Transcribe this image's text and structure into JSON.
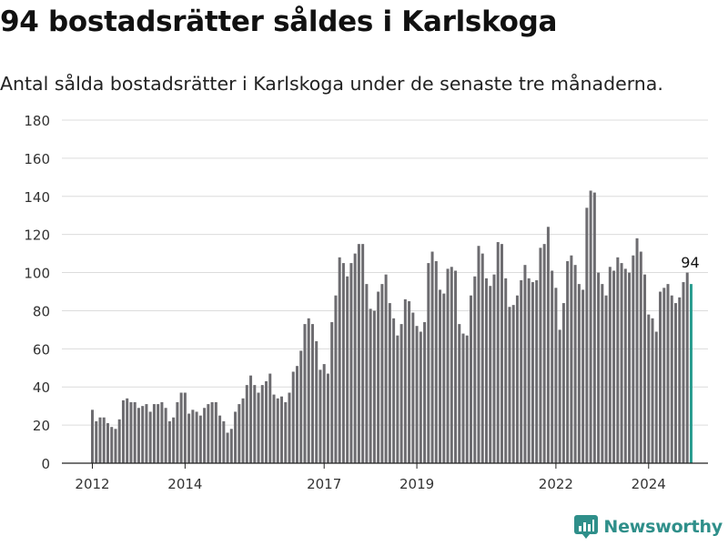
{
  "header": {
    "title": "94 bostadsrätter såldes i Karlskoga",
    "subtitle": "Antal sålda bostadsrätter i Karlskoga under de senaste tre månaderna."
  },
  "brand": {
    "name": "Newsworthy",
    "logo_icon": "newsworthy-logo-icon",
    "color": "#2f8f8a"
  },
  "chart_data": {
    "type": "bar",
    "grid": true,
    "ylim": [
      0,
      180
    ],
    "yticks": [
      "0",
      "20",
      "40",
      "60",
      "80",
      "100",
      "120",
      "140",
      "160",
      "180"
    ],
    "xticks": [
      {
        "label": "2012",
        "index": 0
      },
      {
        "label": "2014",
        "index": 24
      },
      {
        "label": "2017",
        "index": 60
      },
      {
        "label": "2019",
        "index": 84
      },
      {
        "label": "2022",
        "index": 120
      },
      {
        "label": "2024",
        "index": 144
      }
    ],
    "bar_color": "#6d6c70",
    "highlight_color": "#2a9d8f",
    "highlight_label": "94",
    "values": [
      28,
      22,
      24,
      24,
      21,
      19,
      18,
      23,
      33,
      34,
      32,
      32,
      29,
      30,
      31,
      27,
      31,
      31,
      32,
      29,
      22,
      24,
      32,
      37,
      37,
      26,
      28,
      27,
      25,
      29,
      31,
      32,
      32,
      25,
      22,
      16,
      18,
      27,
      31,
      34,
      41,
      46,
      41,
      37,
      41,
      43,
      47,
      36,
      34,
      35,
      32,
      37,
      48,
      51,
      59,
      73,
      76,
      73,
      64,
      49,
      52,
      47,
      74,
      88,
      108,
      105,
      98,
      105,
      110,
      115,
      115,
      94,
      81,
      80,
      90,
      94,
      99,
      84,
      76,
      67,
      73,
      86,
      85,
      79,
      72,
      69,
      74,
      105,
      111,
      106,
      91,
      89,
      102,
      103,
      101,
      73,
      68,
      67,
      88,
      98,
      114,
      110,
      97,
      93,
      99,
      116,
      115,
      97,
      82,
      83,
      88,
      96,
      104,
      97,
      95,
      96,
      113,
      115,
      124,
      101,
      92,
      70,
      84,
      106,
      109,
      104,
      94,
      91,
      134,
      143,
      142,
      100,
      94,
      88,
      103,
      101,
      108,
      105,
      102,
      100,
      109,
      118,
      111,
      99,
      78,
      76,
      69,
      90,
      92,
      94,
      88,
      84,
      87,
      95,
      100,
      94
    ]
  }
}
